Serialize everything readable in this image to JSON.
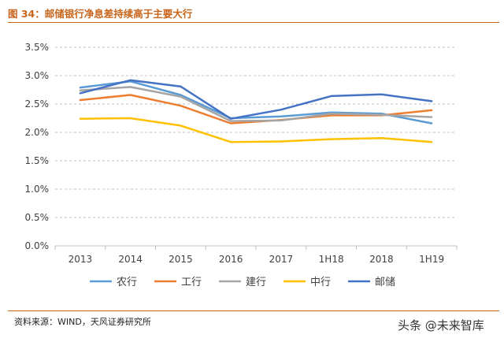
{
  "title": "图 34：邮储银行净息差持续高于主要大行",
  "source": "资料来源：WIND，天风证券研究所",
  "watermark": "头条 @未来智库",
  "chart_data": {
    "type": "line",
    "categories": [
      "2013",
      "2014",
      "2015",
      "2016",
      "2017",
      "1H18",
      "2018",
      "1H19"
    ],
    "y_ticks": [
      "0.0%",
      "0.5%",
      "1.0%",
      "1.5%",
      "2.0%",
      "2.5%",
      "3.0%",
      "3.5%"
    ],
    "ylim": [
      0,
      3.5
    ],
    "grid": "horizontal-dashed",
    "legend_position": "bottom",
    "series": [
      {
        "name": "农行",
        "color": "#5b9bd5",
        "values": [
          2.79,
          2.9,
          2.66,
          2.25,
          2.28,
          2.35,
          2.33,
          2.16
        ]
      },
      {
        "name": "工行",
        "color": "#ed7d31",
        "values": [
          2.57,
          2.66,
          2.47,
          2.16,
          2.22,
          2.3,
          2.3,
          2.39
        ]
      },
      {
        "name": "建行",
        "color": "#a5a5a5",
        "values": [
          2.74,
          2.8,
          2.63,
          2.2,
          2.21,
          2.33,
          2.31,
          2.27
        ]
      },
      {
        "name": "中行",
        "color": "#ffc000",
        "values": [
          2.24,
          2.25,
          2.12,
          1.83,
          1.84,
          1.88,
          1.9,
          1.83
        ]
      },
      {
        "name": "邮储",
        "color": "#4472c4",
        "values": [
          2.69,
          2.92,
          2.81,
          2.24,
          2.4,
          2.64,
          2.67,
          2.55
        ]
      }
    ]
  }
}
